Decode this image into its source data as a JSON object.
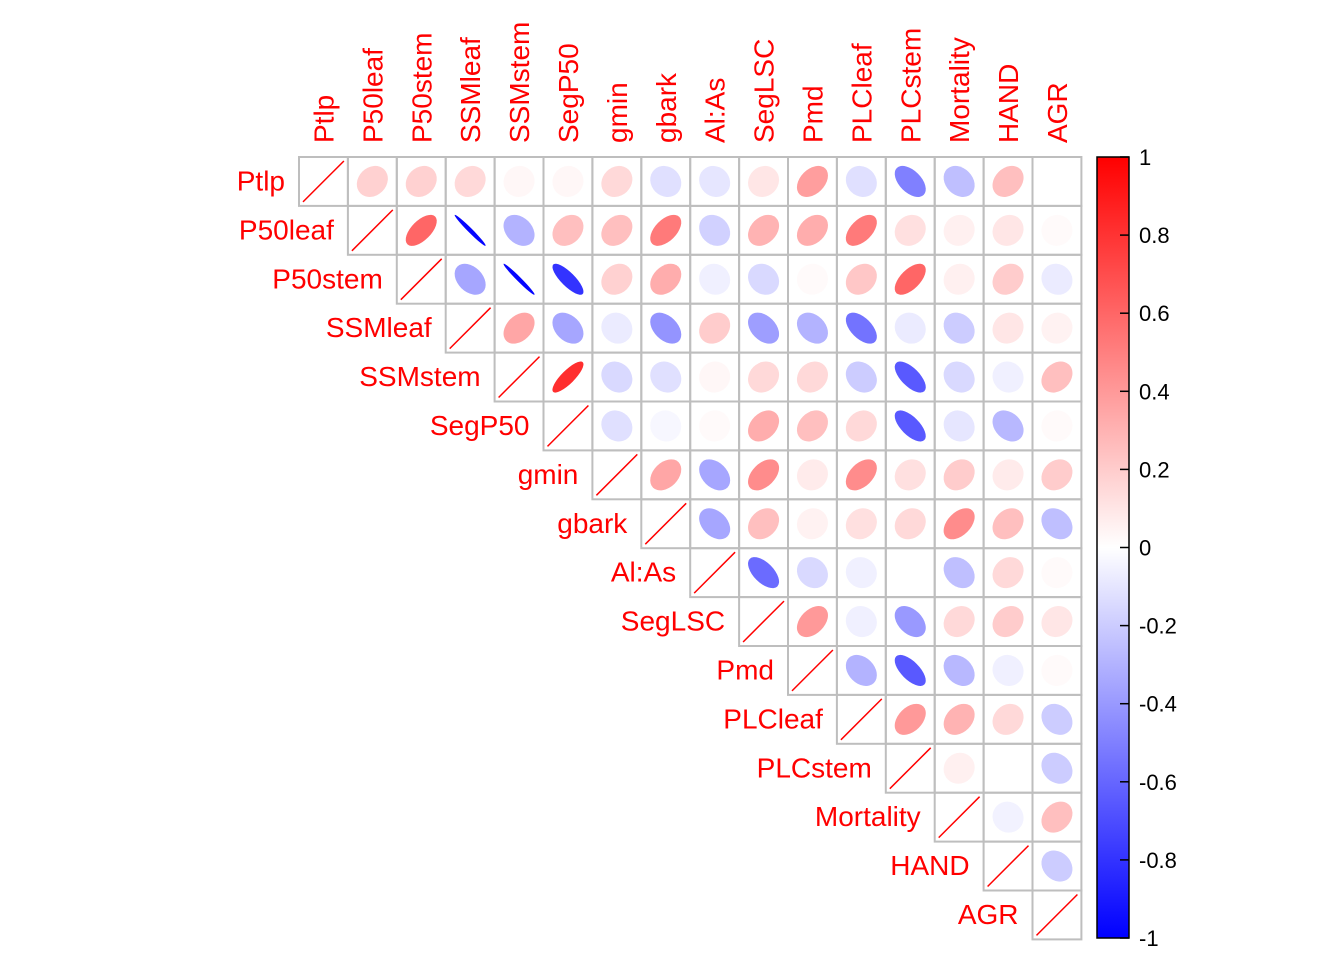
{
  "chart_data": {
    "type": "heatmap",
    "variables": [
      "Ptlp",
      "P50leaf",
      "P50stem",
      "SSMleaf",
      "SSMstem",
      "SegP50",
      "gmin",
      "gbark",
      "Al:As",
      "SegLSC",
      "Pmd",
      "PLCleaf",
      "PLCstem",
      "Mortality",
      "HAND",
      "AGR"
    ],
    "layout": "upper-triangle",
    "method": "ellipse",
    "matrix": [
      [
        1,
        0.18,
        0.18,
        0.15,
        0.03,
        0.03,
        0.15,
        -0.12,
        -0.1,
        0.1,
        0.38,
        -0.12,
        -0.5,
        -0.25,
        0.25,
        0.0
      ],
      [
        null,
        1,
        0.6,
        -0.98,
        -0.3,
        0.25,
        0.25,
        0.52,
        -0.18,
        0.3,
        0.32,
        0.52,
        0.12,
        0.06,
        0.1,
        0.02
      ],
      [
        null,
        null,
        1,
        -0.35,
        -0.98,
        -0.8,
        0.18,
        0.32,
        -0.06,
        -0.15,
        0.02,
        0.22,
        0.6,
        0.06,
        0.2,
        -0.08
      ],
      [
        null,
        null,
        null,
        1,
        0.35,
        -0.35,
        -0.08,
        -0.42,
        0.2,
        -0.38,
        -0.3,
        -0.55,
        -0.08,
        -0.2,
        0.1,
        0.05
      ],
      [
        null,
        null,
        null,
        null,
        1,
        0.82,
        -0.15,
        -0.12,
        0.03,
        0.15,
        0.15,
        -0.2,
        -0.65,
        -0.15,
        -0.06,
        0.25
      ],
      [
        null,
        null,
        null,
        null,
        null,
        1,
        -0.12,
        -0.03,
        0.02,
        0.32,
        0.25,
        0.15,
        -0.65,
        -0.1,
        -0.28,
        0.02
      ],
      [
        null,
        null,
        null,
        null,
        null,
        null,
        1,
        0.35,
        -0.35,
        0.45,
        0.08,
        0.45,
        0.12,
        0.2,
        0.08,
        0.2
      ],
      [
        null,
        null,
        null,
        null,
        null,
        null,
        null,
        1,
        -0.35,
        0.25,
        0.05,
        0.12,
        0.15,
        0.45,
        0.25,
        -0.25
      ],
      [
        null,
        null,
        null,
        null,
        null,
        null,
        null,
        null,
        1,
        -0.58,
        -0.15,
        -0.06,
        0.0,
        -0.25,
        0.15,
        0.02
      ],
      [
        null,
        null,
        null,
        null,
        null,
        null,
        null,
        null,
        null,
        1,
        0.4,
        -0.06,
        -0.4,
        0.15,
        0.2,
        0.1
      ],
      [
        null,
        null,
        null,
        null,
        null,
        null,
        null,
        null,
        null,
        null,
        1,
        -0.3,
        -0.65,
        -0.28,
        -0.06,
        0.02
      ],
      [
        null,
        null,
        null,
        null,
        null,
        null,
        null,
        null,
        null,
        null,
        null,
        1,
        0.4,
        0.3,
        0.15,
        -0.2
      ],
      [
        null,
        null,
        null,
        null,
        null,
        null,
        null,
        null,
        null,
        null,
        null,
        null,
        1,
        0.06,
        0.0,
        -0.2
      ],
      [
        null,
        null,
        null,
        null,
        null,
        null,
        null,
        null,
        null,
        null,
        null,
        null,
        null,
        1,
        -0.05,
        0.25
      ],
      [
        null,
        null,
        null,
        null,
        null,
        null,
        null,
        null,
        null,
        null,
        null,
        null,
        null,
        null,
        1,
        -0.2
      ],
      [
        null,
        null,
        null,
        null,
        null,
        null,
        null,
        null,
        null,
        null,
        null,
        null,
        null,
        null,
        null,
        1
      ]
    ],
    "colorbar": {
      "range": [
        -1,
        1
      ],
      "ticks": [
        "1",
        "0.8",
        "0.6",
        "0.4",
        "0.2",
        "0",
        "-0.2",
        "-0.4",
        "-0.6",
        "-0.8",
        "-1"
      ],
      "colors": {
        "negative": "#0000ff",
        "zero": "#ffffff",
        "positive": "#ff0000"
      }
    },
    "label_color": "#ff0000",
    "grid_color": "#bebebe"
  }
}
